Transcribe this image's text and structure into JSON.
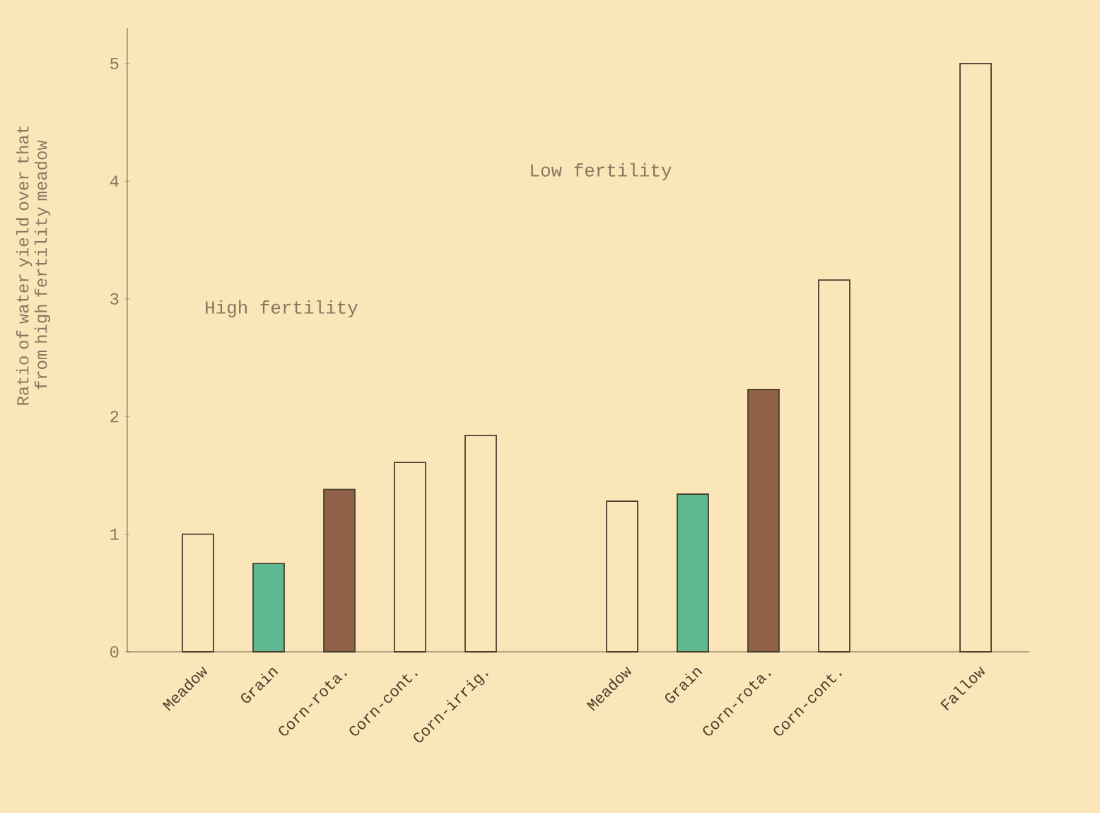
{
  "chart_data": {
    "type": "bar",
    "ylabel": "Ratio of water yield over that from high fertility meadow",
    "categories": [
      "Meadow",
      "Grain",
      "Corn-rota.",
      "Corn-cont.",
      "Corn-irrig.",
      null,
      "Meadow",
      "Grain",
      "Corn-rota.",
      "Corn-cont.",
      null,
      "Fallow"
    ],
    "values": [
      1.0,
      0.75,
      1.38,
      1.61,
      1.84,
      null,
      1.28,
      1.34,
      2.23,
      3.16,
      null,
      5.0
    ],
    "colors": [
      "#fbe6b9",
      "#5cb88e",
      "#8e6148",
      "#fbe6b9",
      "#fbe6b9",
      "#fbe6b9",
      "#fbe6b9",
      "#5cb88e",
      "#8e6148",
      "#fbe6b9",
      "#fbe6b9",
      "#fbe6b9"
    ],
    "ylim": [
      0,
      5.3
    ],
    "yticks": [
      0,
      1,
      2,
      3,
      4,
      5
    ],
    "annotations": [
      "High fertility",
      "Low fertility"
    ]
  }
}
